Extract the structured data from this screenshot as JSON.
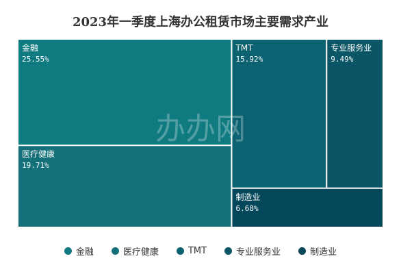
{
  "chart_data": {
    "type": "treemap",
    "title": "2023年一季度上海办公租赁市场主要需求产业",
    "watermark": "办办网",
    "series": [
      {
        "name": "金融",
        "value": 25.55,
        "label": "25.55%",
        "color": "#0f7a80"
      },
      {
        "name": "医疗健康",
        "value": 19.71,
        "label": "19.71%",
        "color": "#137079"
      },
      {
        "name": "TMT",
        "value": 15.92,
        "label": "15.92%",
        "color": "#0c6270"
      },
      {
        "name": "专业服务业",
        "value": 9.49,
        "label": "9.49%",
        "color": "#0b5666"
      },
      {
        "name": "制造业",
        "value": 6.68,
        "label": "6.68%",
        "color": "#05475a"
      }
    ],
    "legend_position": "bottom"
  }
}
